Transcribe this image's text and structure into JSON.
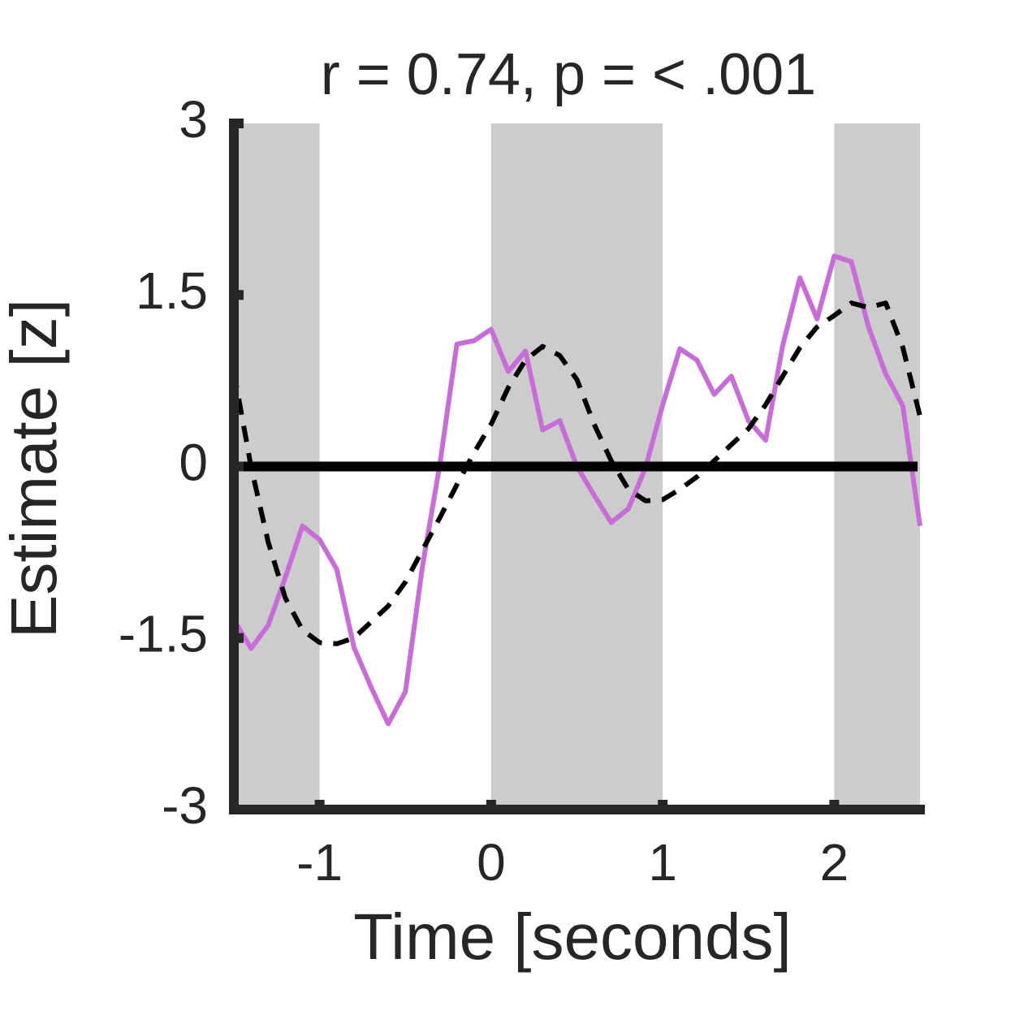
{
  "chart_data": {
    "type": "line",
    "title": "r = 0.74, p = < .001",
    "x_label": "Time [seconds]",
    "y_label": "Estimate [z]",
    "x": [
      -1.5,
      -1.4,
      -1.3,
      -1.2,
      -1.1,
      -1.0,
      -0.9,
      -0.8,
      -0.7,
      -0.6,
      -0.5,
      -0.4,
      -0.3,
      -0.2,
      -0.1,
      0,
      0.1,
      0.2,
      0.3,
      0.4,
      0.5,
      0.6,
      0.7,
      0.8,
      0.9,
      1.0,
      1.1,
      1.2,
      1.3,
      1.4,
      1.5,
      1.6,
      1.7,
      1.8,
      1.9,
      2.0,
      2.1,
      2.2,
      2.3,
      2.4,
      2.5
    ],
    "series": [
      {
        "color": "#c86dd7",
        "dash": false,
        "values": [
          -1.34,
          -1.59,
          -1.39,
          -0.97,
          -0.52,
          -0.64,
          -0.9,
          -1.58,
          -1.93,
          -2.25,
          -1.97,
          -0.87,
          0.01,
          1.07,
          1.1,
          1.2,
          0.83,
          1.01,
          0.32,
          0.4,
          0.0,
          -0.25,
          -0.49,
          -0.37,
          -0.01,
          0.54,
          1.03,
          0.93,
          0.63,
          0.79,
          0.4,
          0.23,
          1.06,
          1.65,
          1.29,
          1.84,
          1.79,
          1.22,
          0.81,
          0.53,
          -0.52
        ]
      },
      {
        "color": "#000000",
        "dash": true,
        "values": [
          0.83,
          0.0,
          -0.66,
          -1.15,
          -1.43,
          -1.54,
          -1.55,
          -1.5,
          -1.36,
          -1.22,
          -1.01,
          -0.73,
          -0.45,
          -0.16,
          0.12,
          0.37,
          0.69,
          0.93,
          1.05,
          0.97,
          0.76,
          0.37,
          0.05,
          -0.2,
          -0.3,
          -0.29,
          -0.2,
          -0.09,
          0.05,
          0.19,
          0.33,
          0.54,
          0.79,
          1.04,
          1.22,
          1.32,
          1.43,
          1.39,
          1.43,
          1.04,
          0.44
        ]
      }
    ],
    "shaded": [
      [
        -1.5,
        -1
      ],
      [
        0,
        1
      ],
      [
        2,
        2.5
      ]
    ],
    "shade_color": "#cccccc",
    "hline": 0,
    "xlim": [
      -1.5,
      2.5
    ],
    "ylim": [
      -3,
      3
    ],
    "xticks": [
      -1,
      0,
      1,
      2
    ],
    "yticks": [
      -3,
      -1.5,
      0,
      1.5,
      3
    ]
  }
}
